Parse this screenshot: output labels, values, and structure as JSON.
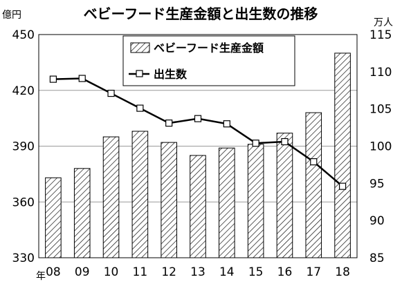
{
  "chart_data": {
    "type": "bar",
    "title": "ベビーフード生産金額と出生数の推移",
    "x_unit_label": "年",
    "categories": [
      "08",
      "09",
      "10",
      "11",
      "12",
      "13",
      "14",
      "15",
      "16",
      "17",
      "18"
    ],
    "y_left": {
      "unit": "億円",
      "min": 330,
      "max": 450,
      "ticks": [
        330,
        360,
        390,
        420,
        450
      ]
    },
    "y_right": {
      "unit": "万人",
      "min": 85,
      "max": 115,
      "ticks": [
        85,
        90,
        95,
        100,
        105,
        110,
        115
      ]
    },
    "grid": true,
    "legend_position": "top-center",
    "series": [
      {
        "name": "ベビーフード生産金額",
        "type": "bar",
        "axis": "left",
        "values": [
          373,
          378,
          395,
          398,
          392,
          385,
          389,
          391,
          397,
          408,
          440
        ]
      },
      {
        "name": "出生数",
        "type": "line",
        "axis": "right",
        "values": [
          109.0,
          109.1,
          107.1,
          105.1,
          103.1,
          103.7,
          103.0,
          100.4,
          100.6,
          97.9,
          94.6
        ]
      }
    ]
  }
}
